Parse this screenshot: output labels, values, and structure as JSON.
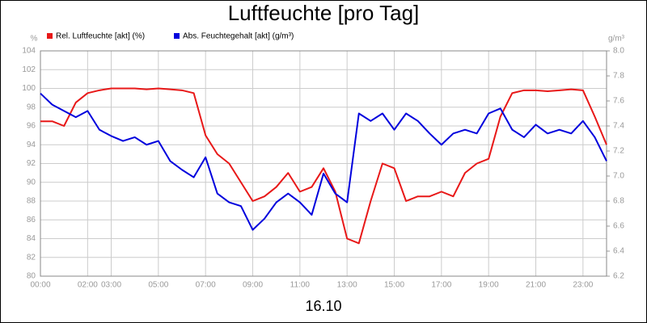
{
  "chart_data": {
    "type": "line",
    "title": "Luftfeuchte [pro Tag]",
    "x_label": "16.10",
    "y_unit": "%",
    "y2_unit": "g/m³",
    "x": [
      0,
      0.5,
      1,
      1.5,
      2,
      2.5,
      3,
      3.5,
      4,
      4.5,
      5,
      5.5,
      6,
      6.5,
      7,
      7.5,
      8,
      8.5,
      9,
      9.5,
      10,
      10.5,
      11,
      11.5,
      12,
      12.5,
      13,
      13.5,
      14,
      14.5,
      15,
      15.5,
      16,
      16.5,
      17,
      17.5,
      18,
      18.5,
      19,
      19.5,
      20,
      20.5,
      21,
      21.5,
      22,
      22.5,
      23,
      23.5,
      24
    ],
    "series": [
      {
        "name": "Rel. Luftfeuchte [akt] (%)",
        "color": "#e81818",
        "values": [
          96.5,
          96.5,
          96,
          98.5,
          99.5,
          99.8,
          100,
          100,
          100,
          99.9,
          100,
          99.9,
          99.8,
          99.5,
          95,
          93,
          92,
          90,
          88,
          88.5,
          89.5,
          91,
          89,
          89.5,
          91.5,
          89,
          84,
          83.5,
          88,
          92,
          91.5,
          88,
          88.5,
          88.5,
          89,
          88.5,
          91,
          92,
          92.5,
          97,
          99.5,
          99.8,
          99.8,
          99.7,
          99.8,
          99.9,
          99.8,
          97,
          94
        ]
      },
      {
        "name": "Abs. Feuchtegehalt [akt] (g/m³)",
        "color": "#0000dd",
        "axis": "y2",
        "values": [
          7.66,
          7.57,
          7.52,
          7.47,
          7.52,
          7.37,
          7.32,
          7.28,
          7.31,
          7.25,
          7.28,
          7.12,
          7.05,
          6.99,
          7.15,
          6.86,
          6.79,
          6.76,
          6.57,
          6.66,
          6.79,
          6.86,
          6.79,
          6.69,
          7.02,
          6.86,
          6.79,
          7.5,
          7.44,
          7.5,
          7.37,
          7.5,
          7.44,
          7.34,
          7.25,
          7.34,
          7.37,
          7.34,
          7.5,
          7.54,
          7.37,
          7.31,
          7.41,
          7.34,
          7.37,
          7.34,
          7.44,
          7.31,
          7.12
        ]
      }
    ],
    "xlim": [
      0,
      24
    ],
    "xticks": [
      {
        "value": 0,
        "label": "00:00"
      },
      {
        "value": 2,
        "label": "02:00"
      },
      {
        "value": 3,
        "label": "03:00"
      },
      {
        "value": 5,
        "label": "05:00"
      },
      {
        "value": 7,
        "label": "07:00"
      },
      {
        "value": 9,
        "label": "09:00"
      },
      {
        "value": 11,
        "label": "11:00"
      },
      {
        "value": 13,
        "label": "13:00"
      },
      {
        "value": 15,
        "label": "15:00"
      },
      {
        "value": 17,
        "label": "17:00"
      },
      {
        "value": 19,
        "label": "19:00"
      },
      {
        "value": 21,
        "label": "21:00"
      },
      {
        "value": 23,
        "label": "23:00"
      }
    ],
    "ylim": [
      80,
      104
    ],
    "yticks": [
      80,
      82,
      84,
      86,
      88,
      90,
      92,
      94,
      96,
      98,
      100,
      102,
      104
    ],
    "y2lim": [
      6.2,
      8.0
    ],
    "y2ticks": [
      6.2,
      6.4,
      6.6,
      6.8,
      {
        "value": 7,
        "label": "7.0"
      },
      7.2,
      7.4,
      7.6,
      7.8,
      {
        "value": 8,
        "label": "8.0"
      }
    ],
    "grid": true
  }
}
